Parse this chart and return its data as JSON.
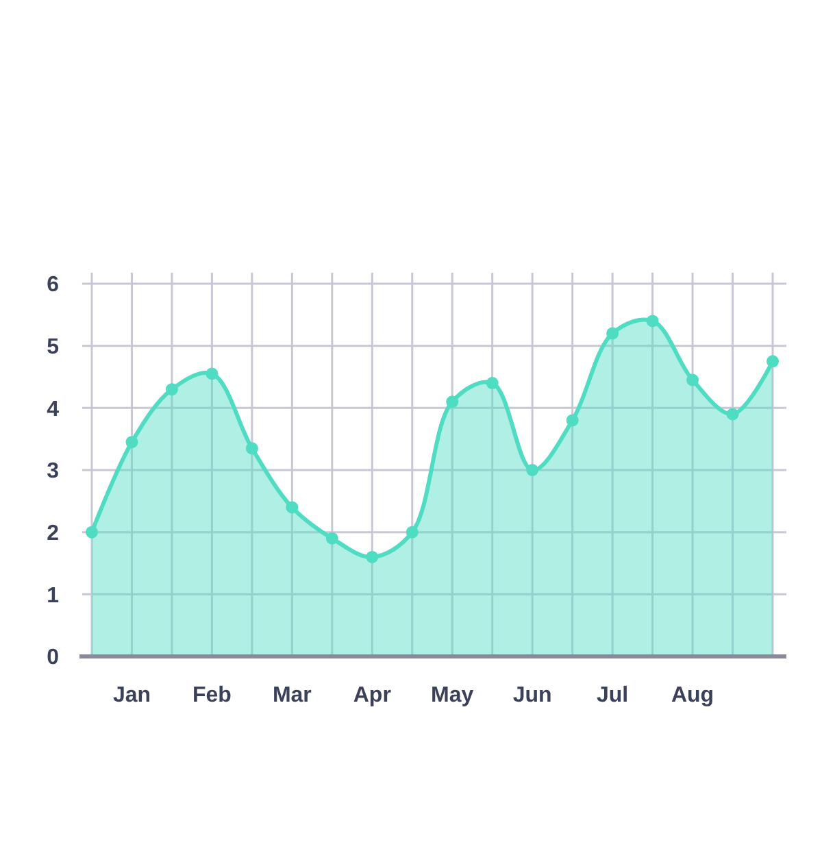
{
  "chart_data": {
    "type": "area",
    "categories": [
      null,
      "Jan",
      null,
      "Feb",
      null,
      "Mar",
      null,
      "Apr",
      null,
      "May",
      null,
      "Jun",
      null,
      "Jul",
      null,
      "Aug",
      null,
      null
    ],
    "series": [
      {
        "color": "#4fdcc3",
        "values": [
          2.0,
          3.45,
          4.3,
          4.55,
          3.35,
          2.4,
          1.9,
          1.6,
          2.0,
          4.1,
          4.4,
          3.0,
          3.8,
          5.2,
          5.4,
          4.45,
          3.9,
          4.75
        ]
      }
    ],
    "ylim": [
      0,
      6
    ],
    "yticks": [
      0,
      1,
      2,
      3,
      4,
      5,
      6
    ],
    "grid": true,
    "marker": "circle"
  }
}
